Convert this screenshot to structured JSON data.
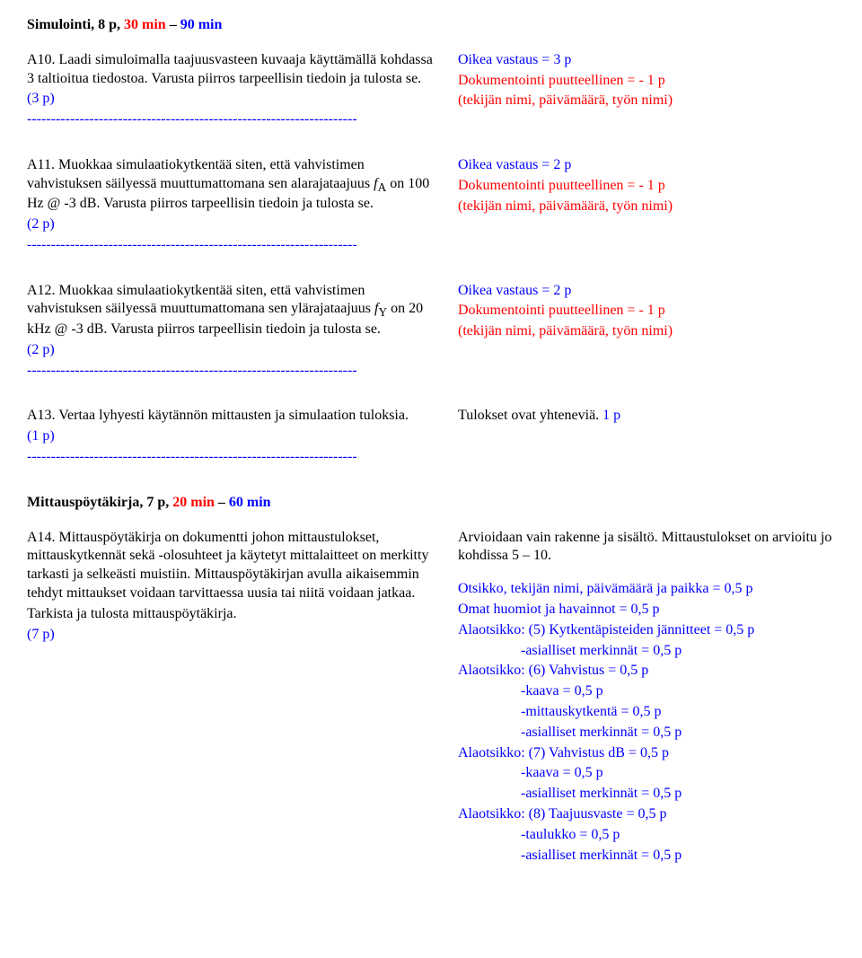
{
  "section1": {
    "heading_black": "Simulointi, 8 p, ",
    "heading_red": "30 min",
    "heading_sep": " – ",
    "heading_blue": "90 min",
    "left_a10": "A10. Laadi simuloimalla taajuusvasteen kuvaaja käyttämällä kohdassa 3 taltioitua tiedostoa. Varusta piirros tarpeellisin tiedoin ja tulosta se.",
    "left_pts": "(3 p)",
    "sep": "---------------------------------------------------------------------",
    "right_l1": "Oikea vastaus = 3 p",
    "right_l2": "Dokumentointi puutteellinen = - 1 p",
    "right_l3": "(tekijän nimi, päivämäärä, työn nimi)"
  },
  "section2": {
    "left_a11_pre": "A11. Muokkaa simulaatiokytkentää siten, että vahvistimen vahvistuksen säilyessä muuttumattomana sen alarajataajuus ",
    "left_a11_fa": "f",
    "left_a11_sub": "A",
    "left_a11_post": " on 100 Hz @ -3 dB. Varusta piirros tarpeellisin tiedoin ja tulosta se.",
    "left_pts": "(2 p)",
    "sep": "---------------------------------------------------------------------",
    "right_l1": "Oikea vastaus = 2 p",
    "right_l2": "Dokumentointi puutteellinen = - 1 p",
    "right_l3": "(tekijän nimi, päivämäärä, työn nimi)"
  },
  "section3": {
    "left_a12_pre": "A12. Muokkaa simulaatiokytkentää siten, että vahvistimen vahvistuksen säilyessä muuttumattomana sen ylärajataajuus ",
    "left_a12_fy": "f",
    "left_a12_sub": "Y",
    "left_a12_post": " on 20 kHz @ -3 dB. Varusta piirros tarpeellisin tiedoin ja tulosta se.",
    "left_pts": "(2 p)",
    "sep": "---------------------------------------------------------------------",
    "right_l1": "Oikea vastaus = 2 p",
    "right_l2": "Dokumentointi puutteellinen = - 1 p",
    "right_l3": "(tekijän nimi, päivämäärä, työn nimi)"
  },
  "section4": {
    "left_a13": "A13. Vertaa lyhyesti käytännön mittausten ja simulaation tuloksia.",
    "left_pts": "(1 p)",
    "sep": "---------------------------------------------------------------------",
    "right_black": "Tulokset ovat yhteneviä.   ",
    "right_blue": "1 p"
  },
  "section5": {
    "heading_black": "Mittauspöytäkirja, 7 p, ",
    "heading_red": "20 min",
    "heading_sep": " – ",
    "heading_blue": "60 min",
    "left_a14": "A14. Mittauspöytäkirja on dokumentti johon mittaustulokset, mittauskytkennät sekä -olosuhteet ja käytetyt mittalaitteet on merkitty tarkasti ja selkeästi muistiin. Mittauspöytäkirjan avulla aikaisemmin tehdyt mittaukset voidaan tarvittaessa uusia tai niitä voidaan jatkaa.",
    "left_a14b": "Tarkista ja tulosta mittauspöytäkirja.",
    "left_pts": "(7 p)",
    "right_intro_black": "Arvioidaan vain rakenne ja sisältö. Mittaustulokset on arvioitu jo kohdissa 5 – 10.",
    "r1": "Otsikko, tekijän nimi, päivämäärä ja paikka = 0,5 p",
    "r2": "Omat huomiot ja havainnot = 0,5 p",
    "r3": "Alaotsikko: (5) Kytkentäpisteiden jännitteet = 0,5 p",
    "r3a": "-asialliset merkinnät = 0,5 p",
    "r4": "Alaotsikko: (6) Vahvistus = 0,5 p",
    "r4a": "-kaava = 0,5 p",
    "r4b": "-mittauskytkentä = 0,5 p",
    "r4c": "-asialliset merkinnät = 0,5 p",
    "r5": "Alaotsikko: (7) Vahvistus dB = 0,5 p",
    "r5a": "-kaava = 0,5 p",
    "r5b": "-asialliset merkinnät = 0,5 p",
    "r6": "Alaotsikko: (8) Taajuusvaste = 0,5 p",
    "r6a": "-taulukko = 0,5 p",
    "r6b": "-asialliset merkinnät = 0,5 p"
  }
}
